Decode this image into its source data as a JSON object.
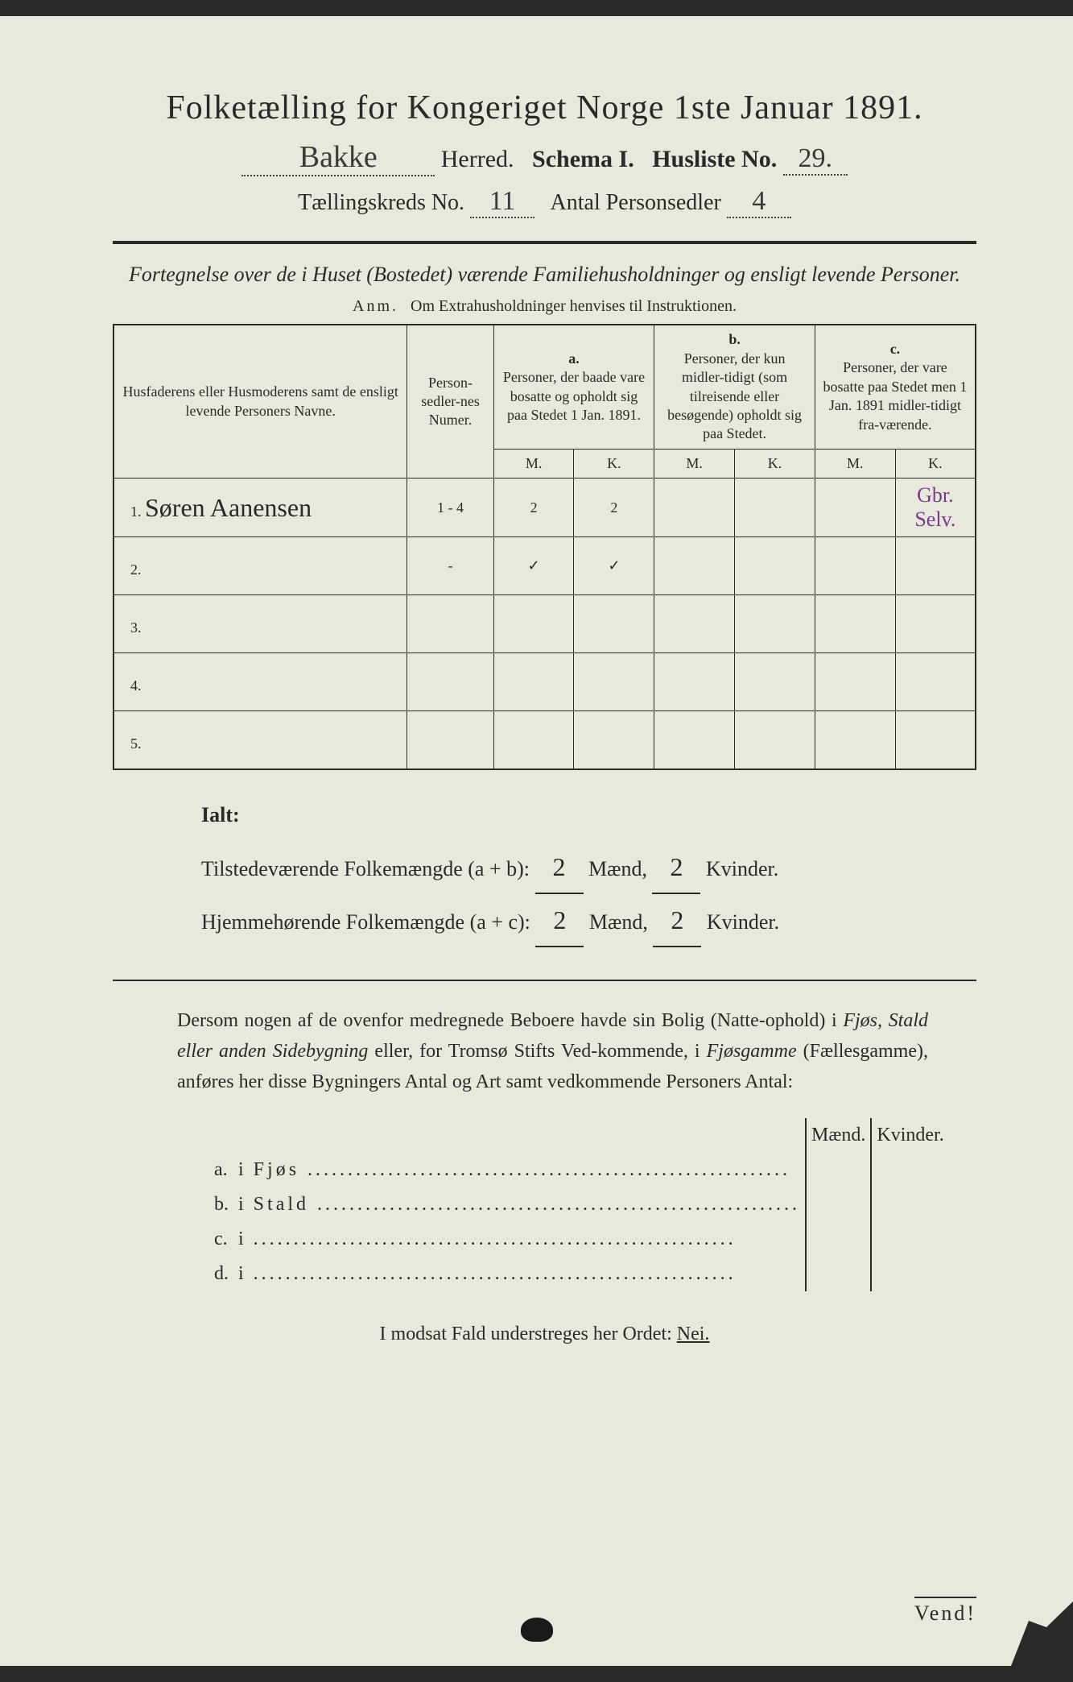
{
  "title": "Folketælling for Kongeriget Norge 1ste Januar 1891.",
  "herred_value": "Bakke",
  "herred_label": "Herred.",
  "schema_label": "Schema I.",
  "husliste_label": "Husliste No.",
  "husliste_value": "29.",
  "kreds_label": "Tællingskreds No.",
  "kreds_value": "11",
  "antal_label": "Antal Personsedler",
  "antal_value": "4",
  "subtitle": "Fortegnelse over de i Huset (Bostedet) værende Familiehusholdninger og ensligt levende Personer.",
  "anm_prefix": "Anm.",
  "anm_text": "Om Extrahusholdninger henvises til Instruktionen.",
  "columns": {
    "name": "Husfaderens eller Husmoderens samt de ensligt levende Personers Navne.",
    "num": "Person-sedler-nes Numer.",
    "a_label": "a.",
    "a_text": "Personer, der baade vare bosatte og opholdt sig paa Stedet 1 Jan. 1891.",
    "b_label": "b.",
    "b_text": "Personer, der kun midler-tidigt (som tilreisende eller besøgende) opholdt sig paa Stedet.",
    "c_label": "c.",
    "c_text": "Personer, der vare bosatte paa Stedet men 1 Jan. 1891 midler-tidigt fra-værende.",
    "m": "M.",
    "k": "K."
  },
  "rows": [
    {
      "n": "1.",
      "name": "Søren Aanensen",
      "num": "1 - 4",
      "am": "2",
      "ak": "2",
      "bm": "",
      "bk": "",
      "cm": "",
      "ck": "",
      "note": "Gbr. Selv."
    },
    {
      "n": "2.",
      "name": "",
      "num": "-",
      "am": "✓",
      "ak": "✓",
      "bm": "",
      "bk": "",
      "cm": "",
      "ck": "",
      "note": ""
    },
    {
      "n": "3.",
      "name": "",
      "num": "",
      "am": "",
      "ak": "",
      "bm": "",
      "bk": "",
      "cm": "",
      "ck": "",
      "note": ""
    },
    {
      "n": "4.",
      "name": "",
      "num": "",
      "am": "",
      "ak": "",
      "bm": "",
      "bk": "",
      "cm": "",
      "ck": "",
      "note": ""
    },
    {
      "n": "5.",
      "name": "",
      "num": "",
      "am": "",
      "ak": "",
      "bm": "",
      "bk": "",
      "cm": "",
      "ck": "",
      "note": ""
    }
  ],
  "ialt": {
    "heading": "Ialt:",
    "line1_label": "Tilstedeværende Folkemængde (a + b):",
    "line1_m": "2",
    "line1_k": "2",
    "line2_label": "Hjemmehørende Folkemængde (a + c):",
    "line2_m": "2",
    "line2_k": "2",
    "maend": "Mænd,",
    "kvinder": "Kvinder."
  },
  "para": "Dersom nogen af de ovenfor medregnede Beboere havde sin Bolig (Natte-ophold) i Fjøs, Stald eller anden Sidebygning eller, for Tromsø Stifts Ved-kommende, i Fjøsgamme (Fællesgamme), anføres her disse Bygningers Antal og Art samt vedkommende Personers Antal:",
  "buildings": {
    "maend": "Mænd.",
    "kvinder": "Kvinder.",
    "rows": [
      {
        "l": "a.",
        "i": "i",
        "t": "Fjøs"
      },
      {
        "l": "b.",
        "i": "i",
        "t": "Stald"
      },
      {
        "l": "c.",
        "i": "i",
        "t": ""
      },
      {
        "l": "d.",
        "i": "i",
        "t": ""
      }
    ]
  },
  "nei_line_pre": "I modsat Fald understreges her Ordet:",
  "nei": "Nei.",
  "vend": "Vend!"
}
